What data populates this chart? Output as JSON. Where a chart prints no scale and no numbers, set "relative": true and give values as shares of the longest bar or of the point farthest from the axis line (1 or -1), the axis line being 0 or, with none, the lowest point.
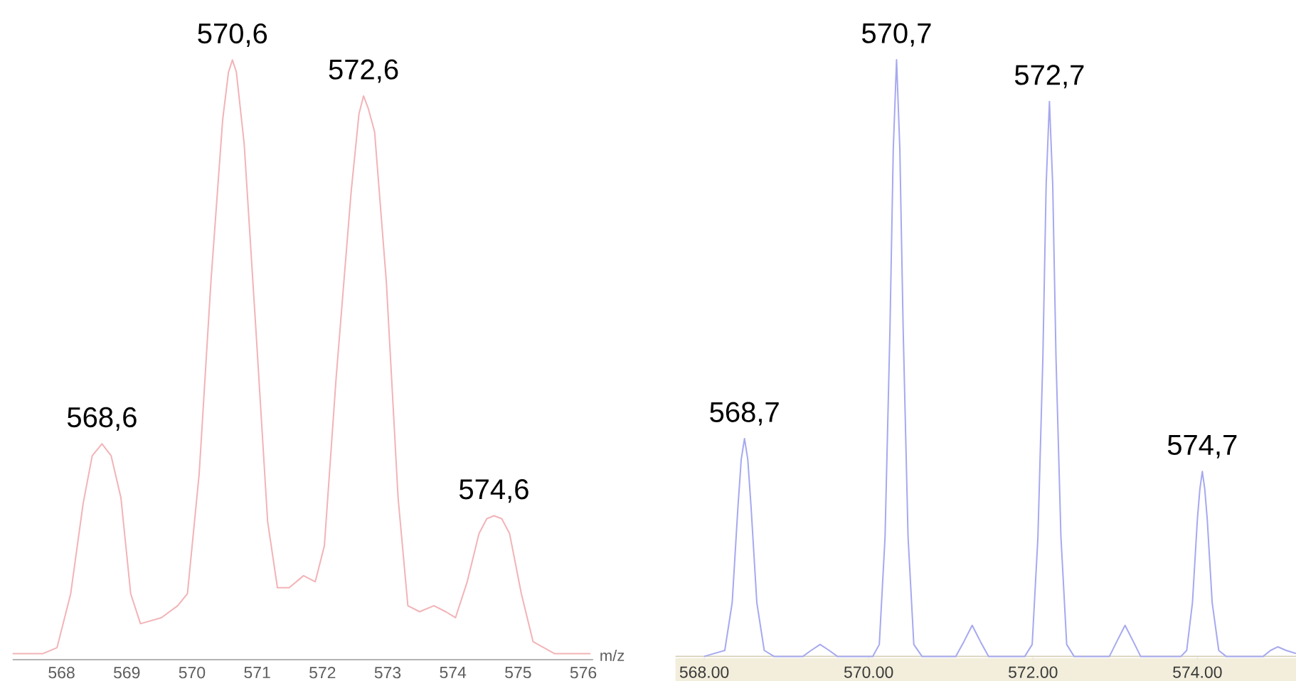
{
  "chart_data": [
    {
      "type": "line",
      "relative": true,
      "color": "#f2b3b7",
      "xlabel": "m/z",
      "tick_labels": "x",
      "xlim": [
        567.25,
        576.15
      ],
      "xticks": [
        568,
        569,
        570,
        571,
        572,
        573,
        574,
        575,
        576
      ],
      "x": [
        567.25,
        567.71,
        567.93,
        568.14,
        568.33,
        568.47,
        568.62,
        568.76,
        568.91,
        569.06,
        569.21,
        569.53,
        569.78,
        569.93,
        570.11,
        570.29,
        570.47,
        570.56,
        570.62,
        570.68,
        570.8,
        570.98,
        571.16,
        571.31,
        571.49,
        571.71,
        571.89,
        572.03,
        572.21,
        572.44,
        572.56,
        572.63,
        572.7,
        572.8,
        572.98,
        573.16,
        573.31,
        573.49,
        573.71,
        573.89,
        574.04,
        574.22,
        574.4,
        574.52,
        574.63,
        574.75,
        574.87,
        575.05,
        575.23,
        575.56,
        576.11
      ],
      "values": [
        0.01,
        0.01,
        0.02,
        0.11,
        0.26,
        0.34,
        0.36,
        0.34,
        0.27,
        0.11,
        0.06,
        0.07,
        0.09,
        0.11,
        0.31,
        0.63,
        0.9,
        0.98,
        1.0,
        0.98,
        0.86,
        0.55,
        0.23,
        0.12,
        0.12,
        0.14,
        0.13,
        0.19,
        0.47,
        0.78,
        0.91,
        0.94,
        0.92,
        0.88,
        0.63,
        0.27,
        0.09,
        0.08,
        0.09,
        0.08,
        0.07,
        0.13,
        0.21,
        0.235,
        0.24,
        0.235,
        0.21,
        0.11,
        0.03,
        0.01,
        0.01
      ],
      "annotations": [
        {
          "text": "568,6",
          "x": 568.62,
          "y": 0.36
        },
        {
          "text": "570,6",
          "x": 570.62,
          "y": 1.0
        },
        {
          "text": "572,6",
          "x": 572.63,
          "y": 0.94
        },
        {
          "text": "574,6",
          "x": 574.63,
          "y": 0.24
        }
      ]
    },
    {
      "type": "line",
      "relative": true,
      "color": "#a6a9ef",
      "tick_labels": "x",
      "xlim": [
        567.65,
        575.2
      ],
      "xticks": [
        {
          "value": 568,
          "label": "568.00"
        },
        {
          "value": 570,
          "label": "570.00"
        },
        {
          "value": 572,
          "label": "572.00"
        },
        {
          "value": 574,
          "label": "574.00"
        }
      ],
      "x": [
        568.0,
        568.25,
        568.34,
        568.41,
        568.45,
        568.49,
        568.53,
        568.57,
        568.64,
        568.73,
        568.85,
        569.2,
        569.3,
        569.41,
        569.52,
        569.62,
        570.05,
        570.13,
        570.2,
        570.26,
        570.3,
        570.34,
        570.38,
        570.42,
        570.48,
        570.55,
        570.65,
        571.06,
        571.16,
        571.26,
        571.36,
        571.46,
        571.9,
        571.99,
        572.06,
        572.12,
        572.16,
        572.2,
        572.24,
        572.28,
        572.34,
        572.41,
        572.5,
        572.93,
        573.02,
        573.12,
        573.22,
        573.31,
        573.8,
        573.87,
        573.94,
        574.0,
        574.03,
        574.06,
        574.09,
        574.12,
        574.18,
        574.26,
        574.35,
        574.8,
        574.89,
        574.98,
        575.08,
        575.2
      ],
      "values": [
        0.0,
        0.01,
        0.09,
        0.25,
        0.33,
        0.365,
        0.33,
        0.25,
        0.09,
        0.01,
        0.0,
        0.0,
        0.01,
        0.02,
        0.01,
        0.0,
        0.0,
        0.02,
        0.2,
        0.55,
        0.85,
        1.0,
        0.85,
        0.55,
        0.2,
        0.02,
        0.0,
        0.0,
        0.025,
        0.052,
        0.025,
        0.0,
        0.0,
        0.02,
        0.2,
        0.5,
        0.79,
        0.93,
        0.79,
        0.5,
        0.2,
        0.02,
        0.0,
        0.0,
        0.025,
        0.052,
        0.025,
        0.0,
        0.0,
        0.01,
        0.09,
        0.23,
        0.28,
        0.31,
        0.28,
        0.23,
        0.09,
        0.01,
        0.0,
        0.0,
        0.01,
        0.016,
        0.01,
        0.005
      ],
      "annotations": [
        {
          "text": "568,7",
          "x": 568.49,
          "y": 0.365
        },
        {
          "text": "570,7",
          "x": 570.34,
          "y": 1.0
        },
        {
          "text": "572,7",
          "x": 572.2,
          "y": 0.93
        },
        {
          "text": "574,7",
          "x": 574.06,
          "y": 0.31
        }
      ]
    }
  ]
}
